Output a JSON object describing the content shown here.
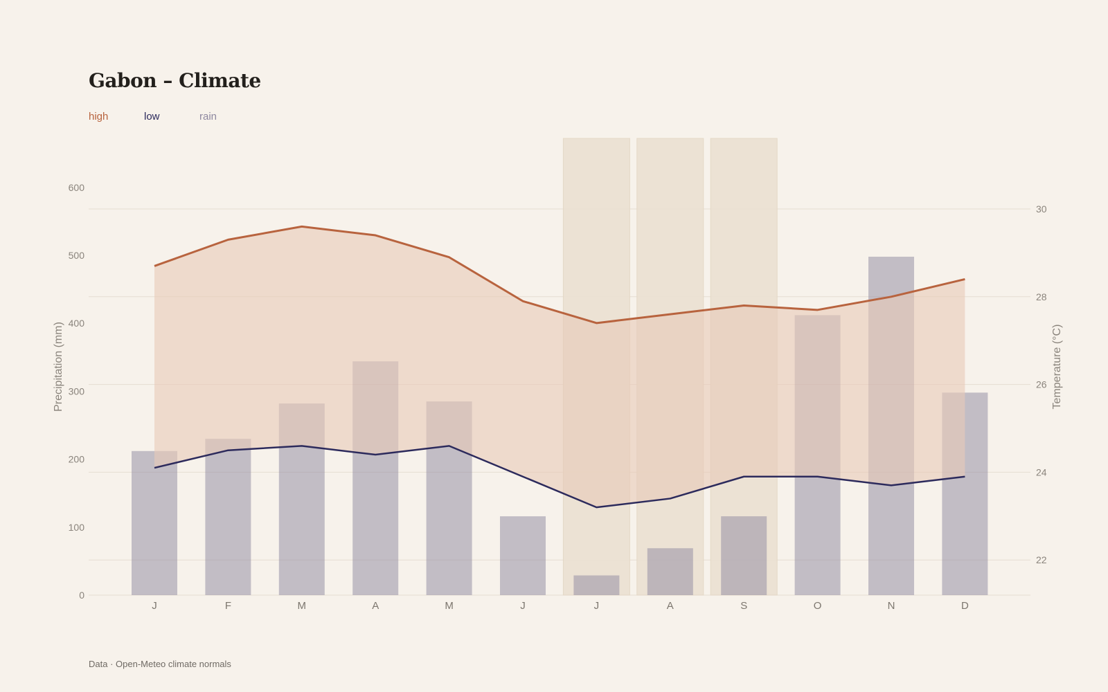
{
  "title": "Gabon – Climate",
  "legend": {
    "high": "high",
    "low": "low",
    "rain": "rain"
  },
  "source": "Data · Open-Meteo climate normals",
  "colors": {
    "background": "#f7f2eb",
    "high": "#b8633e",
    "low": "#2c2a5c",
    "rain": "#8e88a0",
    "band_fill": "#e8c9b8",
    "dry_season": "#ebe1d2",
    "gridline": "#e6ddd2"
  },
  "chart_data": {
    "type": "bar+line",
    "categories": [
      "J",
      "F",
      "M",
      "A",
      "M",
      "J",
      "J",
      "A",
      "S",
      "O",
      "N",
      "D"
    ],
    "series": [
      {
        "name": "rain",
        "type": "bar",
        "axis": "left",
        "values": [
          212,
          230,
          282,
          344,
          285,
          116,
          29,
          69,
          116,
          412,
          498,
          298
        ]
      },
      {
        "name": "high",
        "type": "line",
        "axis": "right",
        "values": [
          28.7,
          29.3,
          29.6,
          29.4,
          28.9,
          27.9,
          27.4,
          27.6,
          27.8,
          27.7,
          28.0,
          28.4
        ]
      },
      {
        "name": "low",
        "type": "line",
        "axis": "right",
        "values": [
          24.1,
          24.5,
          24.6,
          24.4,
          24.6,
          23.9,
          23.2,
          23.4,
          23.9,
          23.9,
          23.7,
          23.9
        ]
      }
    ],
    "highlight_months": [
      "J",
      "A",
      "S"
    ],
    "y_left": {
      "label": "Precipitation (mm)",
      "ticks": [
        0,
        100,
        200,
        300,
        400,
        500,
        600
      ]
    },
    "y_right": {
      "label": "Temperature (°C)",
      "ticks": [
        22,
        24,
        26,
        28,
        30
      ]
    }
  }
}
